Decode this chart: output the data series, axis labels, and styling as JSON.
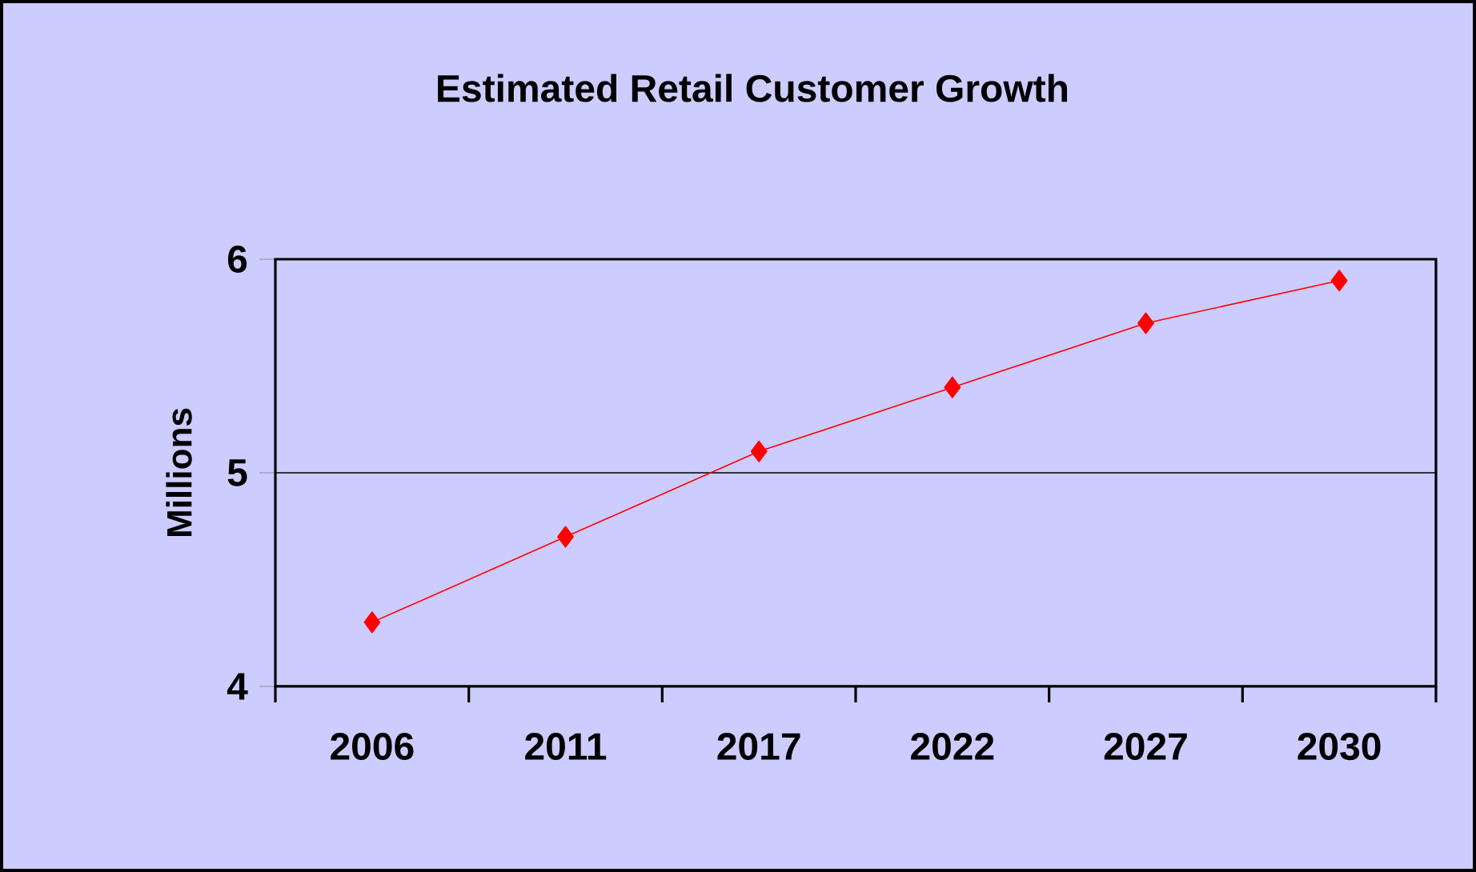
{
  "chart_data": {
    "type": "line",
    "title": "Estimated Retail Customer Growth",
    "ylabel": "Millions",
    "categories": [
      "2006",
      "2011",
      "2017",
      "2022",
      "2027",
      "2030"
    ],
    "series": [
      {
        "color": "#ff0000",
        "values": [
          4.3,
          4.7,
          5.1,
          5.4,
          5.7,
          5.9
        ]
      }
    ],
    "ylim": [
      4,
      6
    ],
    "yticks": [
      4,
      5,
      6
    ],
    "grid": "y",
    "marker": "diamond",
    "line_style": "solid"
  }
}
